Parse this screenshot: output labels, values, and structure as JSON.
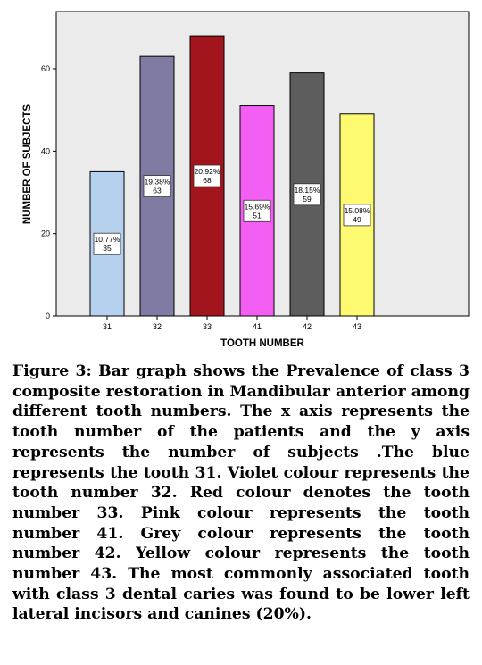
{
  "chart_data": {
    "type": "bar",
    "categories": [
      "31",
      "32",
      "33",
      "41",
      "42",
      "43"
    ],
    "values": [
      35,
      63,
      68,
      51,
      59,
      49
    ],
    "percent_labels": [
      "10.77%",
      "19.38%",
      "20.92%",
      "15.69%",
      "18.15%",
      "15.08%"
    ],
    "value_labels": [
      "35",
      "63",
      "68",
      "51",
      "59",
      "49"
    ],
    "colors": [
      "#b5d1ee",
      "#7f7ba3",
      "#a3151d",
      "#f35ff3",
      "#5d5d5d",
      "#fdfa72"
    ],
    "xlabel": "TOOTH NUMBER",
    "ylabel": "NUMBER OF SUBJECTS",
    "ylim": [
      0,
      72
    ],
    "yticks": [
      0,
      20,
      40,
      60
    ],
    "ytick_labels": [
      "0",
      "20",
      "40",
      "60"
    ],
    "grid": false,
    "plot_background": "#ebebeb"
  },
  "caption": "Figure 3: Bar graph shows the Prevalence of class 3 composite restoration in Mandibular anterior among different tooth numbers. The x axis represents the tooth number of the patients and the y axis represents the number of subjects .The blue represents the tooth 31. Violet colour represents the tooth number 32. Red colour denotes the tooth number 33. Pink colour represents the tooth number 41. Grey colour represents the tooth number 42. Yellow colour represents the tooth number 43. The most commonly associated tooth with class 3 dental caries was found to be lower left lateral incisors and canines (20%)."
}
